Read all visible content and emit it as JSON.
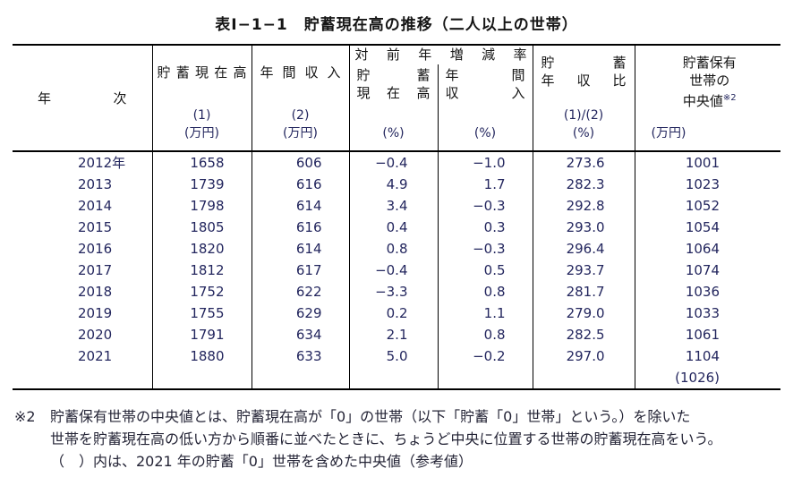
{
  "title": "表Ⅰ−1−1　貯蓄現在高の推移（二人以上の世帯）",
  "table": {
    "header": {
      "year": "年次",
      "savings_title": "貯蓄現在高",
      "savings_num": "(1)",
      "savings_unit": "(万円)",
      "income_title": "年間収入",
      "income_num": "(2)",
      "income_unit": "(万円)",
      "yoy_group": "対前年増減率",
      "yoy_savings_l1": "貯蓄",
      "yoy_savings_l2": "現在高",
      "yoy_savings_unit": "(%)",
      "yoy_income_l1": "年間",
      "yoy_income_l2": "収入",
      "yoy_income_unit": "(%)",
      "ratio_l1": "貯蓄",
      "ratio_l2": "年収比",
      "ratio_num": "(1)/(2)",
      "ratio_unit": "(%)",
      "median_l1": "貯蓄保有",
      "median_l2": "世帯の",
      "median_l3": "中央値",
      "median_sup": "※2",
      "median_unit": "(万円)"
    },
    "column_keys": [
      "year",
      "savings",
      "income",
      "yoy_savings",
      "yoy_income",
      "ratio",
      "median"
    ],
    "rows": [
      {
        "year": "2012年",
        "savings": "1658",
        "income": "606",
        "yoy_savings": "−0.4",
        "yoy_income": "−1.0",
        "ratio": "273.6",
        "median": "1001"
      },
      {
        "year": "2013",
        "savings": "1739",
        "income": "616",
        "yoy_savings": "4.9",
        "yoy_income": "1.7",
        "ratio": "282.3",
        "median": "1023"
      },
      {
        "year": "2014",
        "savings": "1798",
        "income": "614",
        "yoy_savings": "3.4",
        "yoy_income": "−0.3",
        "ratio": "292.8",
        "median": "1052"
      },
      {
        "year": "2015",
        "savings": "1805",
        "income": "616",
        "yoy_savings": "0.4",
        "yoy_income": "0.3",
        "ratio": "293.0",
        "median": "1054"
      },
      {
        "year": "2016",
        "savings": "1820",
        "income": "614",
        "yoy_savings": "0.8",
        "yoy_income": "−0.3",
        "ratio": "296.4",
        "median": "1064"
      },
      {
        "year": "2017",
        "savings": "1812",
        "income": "617",
        "yoy_savings": "−0.4",
        "yoy_income": "0.5",
        "ratio": "293.7",
        "median": "1074"
      },
      {
        "year": "2018",
        "savings": "1752",
        "income": "622",
        "yoy_savings": "−3.3",
        "yoy_income": "0.8",
        "ratio": "281.7",
        "median": "1036"
      },
      {
        "year": "2019",
        "savings": "1755",
        "income": "629",
        "yoy_savings": "0.2",
        "yoy_income": "1.1",
        "ratio": "279.0",
        "median": "1033"
      },
      {
        "year": "2020",
        "savings": "1791",
        "income": "634",
        "yoy_savings": "2.1",
        "yoy_income": "0.8",
        "ratio": "282.5",
        "median": "1061"
      },
      {
        "year": "2021",
        "savings": "1880",
        "income": "633",
        "yoy_savings": "5.0",
        "yoy_income": "−0.2",
        "ratio": "297.0",
        "median": "1104"
      },
      {
        "year": "",
        "savings": "",
        "income": "",
        "yoy_savings": "",
        "yoy_income": "",
        "ratio": "",
        "median": "(1026)"
      }
    ]
  },
  "footnote": {
    "marker": "※2",
    "lines": [
      "貯蓄保有世帯の中央値とは、貯蓄現在高が「0」の世帯（以下「貯蓄「0」世帯」という。）を除いた",
      "世帯を貯蓄現在高の低い方から順番に並べたときに、ちょうど中央に位置する世帯の貯蓄現在高をいう。",
      "（　）内は、2021 年の貯蓄「0」世帯を含めた中央値（参考値）"
    ]
  },
  "chart_data": {
    "type": "table",
    "title": "表Ⅰ−1−1　貯蓄現在高の推移（二人以上の世帯）",
    "columns": [
      "年次",
      "貯蓄現在高 (1) (万円)",
      "年間収入 (2) (万円)",
      "対前年増減率 貯蓄現在高 (%)",
      "対前年増減率 年間収入 (%)",
      "貯蓄年収比 (1)/(2) (%)",
      "貯蓄保有世帯の中央値 (万円)"
    ],
    "rows": [
      [
        "2012年",
        1658,
        606,
        -0.4,
        -1.0,
        273.6,
        1001
      ],
      [
        "2013",
        1739,
        616,
        4.9,
        1.7,
        282.3,
        1023
      ],
      [
        "2014",
        1798,
        614,
        3.4,
        -0.3,
        292.8,
        1052
      ],
      [
        "2015",
        1805,
        616,
        0.4,
        0.3,
        293.0,
        1054
      ],
      [
        "2016",
        1820,
        614,
        0.8,
        -0.3,
        296.4,
        1064
      ],
      [
        "2017",
        1812,
        617,
        -0.4,
        0.5,
        293.7,
        1074
      ],
      [
        "2018",
        1752,
        622,
        -3.3,
        0.8,
        281.7,
        1036
      ],
      [
        "2019",
        1755,
        629,
        0.2,
        1.1,
        279.0,
        1033
      ],
      [
        "2020",
        1791,
        634,
        2.1,
        0.8,
        282.5,
        1061
      ],
      [
        "2021",
        1880,
        633,
        5.0,
        -0.2,
        297.0,
        1104
      ],
      [
        "",
        null,
        null,
        null,
        null,
        null,
        "(1026)"
      ]
    ],
    "notes": [
      "※2 貯蓄保有世帯の中央値とは、貯蓄現在高が「0」の世帯（以下「貯蓄「0」世帯」という。）を除いた世帯を貯蓄現在高の低い方から順番に並べたときに、ちょうど中央に位置する世帯の貯蓄現在高をいう。",
      "（　）内は、2021 年の貯蓄「0」世帯を含めた中央値（参考値）"
    ]
  }
}
